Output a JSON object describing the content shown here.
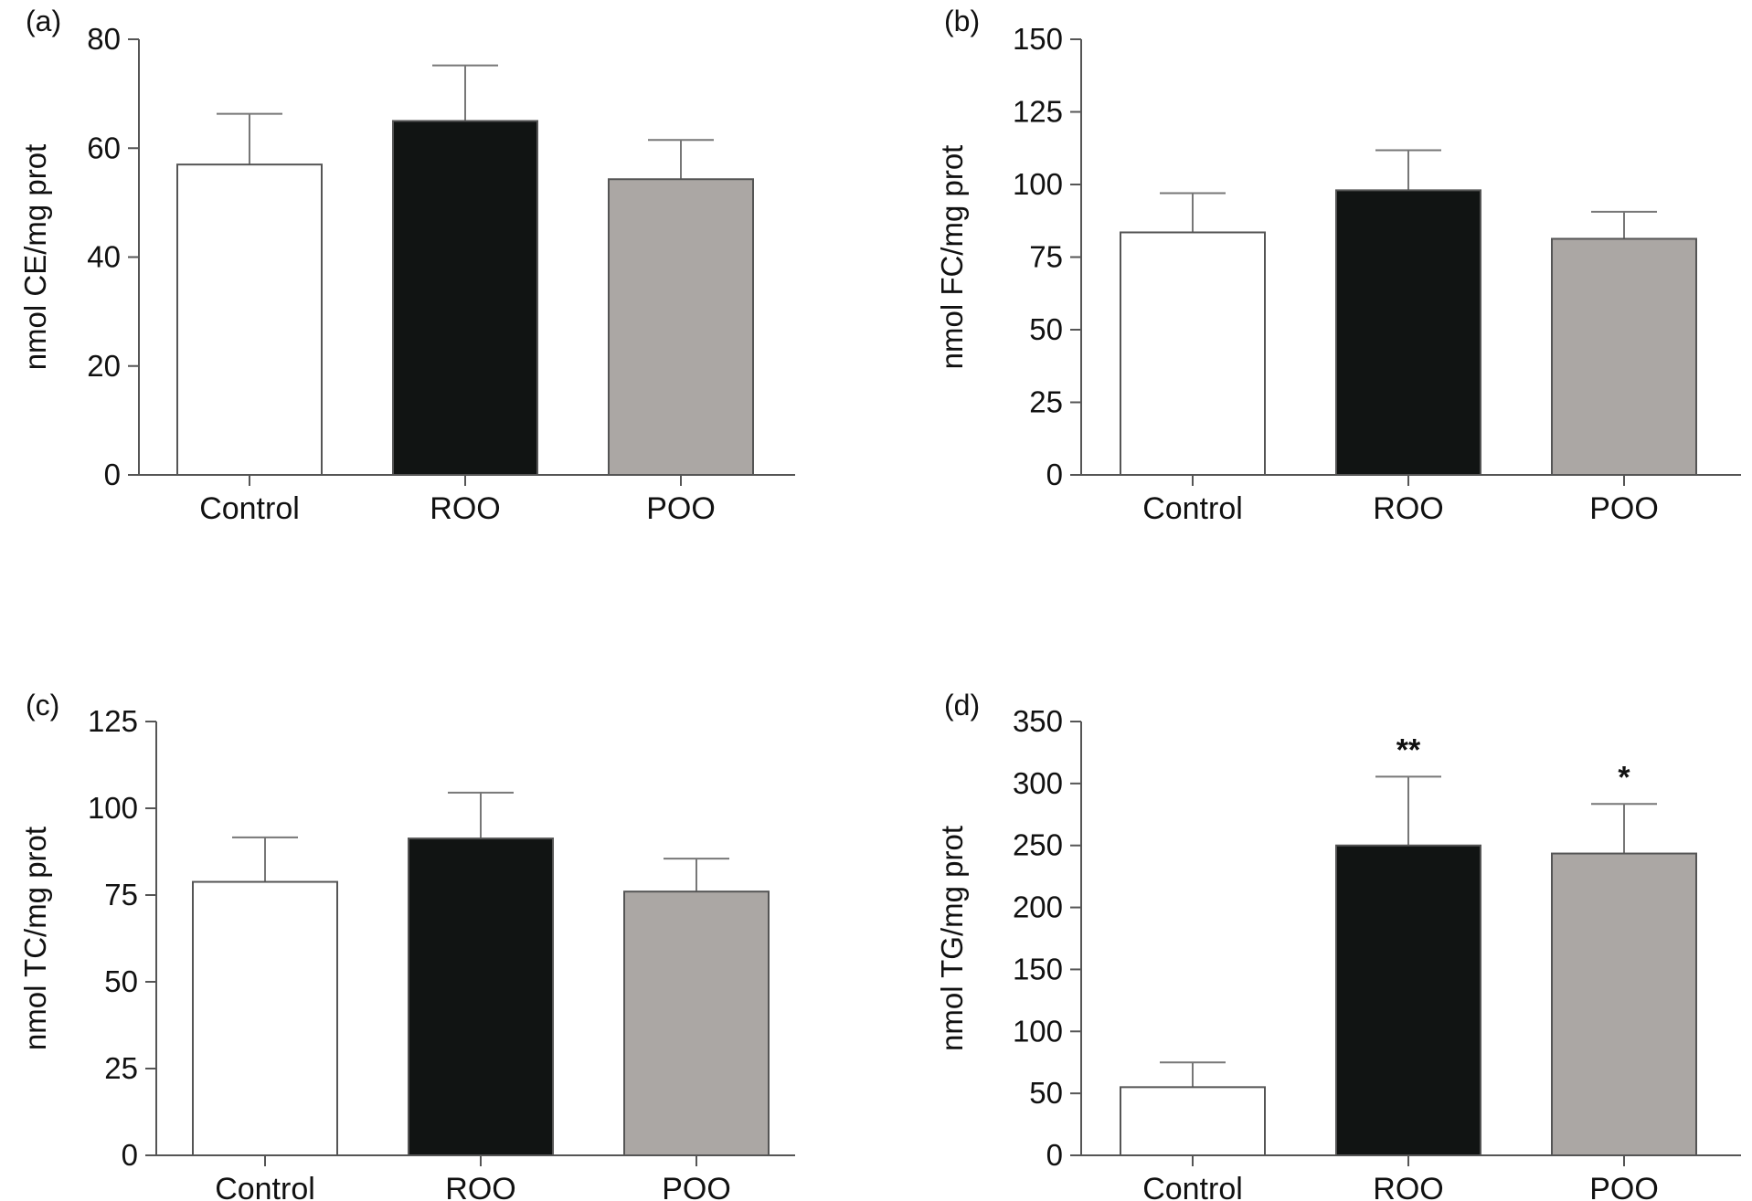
{
  "chart_data": [
    {
      "panel": "(a)",
      "type": "bar",
      "categories": [
        "Control",
        "ROO",
        "POO"
      ],
      "values": [
        57,
        65,
        54.3
      ],
      "errors": [
        9.3,
        10.2,
        7.2
      ],
      "colors": [
        "#ffffff",
        "#111413",
        "#aba7a4"
      ],
      "ylabel": "nmol CE/mg prot",
      "ylim": [
        0,
        80
      ],
      "yticks": [
        "0",
        "20",
        "40",
        "60",
        "80"
      ],
      "annotations": [
        "",
        "",
        ""
      ]
    },
    {
      "panel": "(b)",
      "type": "bar",
      "categories": [
        "Control",
        "ROO",
        "POO"
      ],
      "values": [
        83.5,
        98,
        81.3
      ],
      "errors": [
        13.5,
        13.8,
        9.3
      ],
      "colors": [
        "#ffffff",
        "#111413",
        "#aba7a4"
      ],
      "ylabel": "nmol FC/mg prot",
      "ylim": [
        0,
        150
      ],
      "yticks": [
        "0",
        "25",
        "50",
        "75",
        "100",
        "125",
        "150"
      ],
      "annotations": [
        "",
        "",
        ""
      ]
    },
    {
      "panel": "(c)",
      "type": "bar",
      "categories": [
        "Control",
        "ROO",
        "POO"
      ],
      "values": [
        78.8,
        91.3,
        76
      ],
      "errors": [
        12.8,
        13.2,
        9.5
      ],
      "colors": [
        "#ffffff",
        "#111413",
        "#aba7a4"
      ],
      "ylabel": "nmol TC/mg prot",
      "ylim": [
        0,
        125
      ],
      "yticks": [
        "0",
        "25",
        "50",
        "75",
        "100",
        "125"
      ],
      "annotations": [
        "",
        "",
        ""
      ]
    },
    {
      "panel": "(d)",
      "type": "bar",
      "categories": [
        "Control",
        "ROO",
        "POO"
      ],
      "values": [
        55,
        250,
        243.5
      ],
      "errors": [
        20,
        55.5,
        40
      ],
      "colors": [
        "#ffffff",
        "#111413",
        "#aba7a4"
      ],
      "ylabel": "nmol TG/mg prot",
      "ylim": [
        0,
        350
      ],
      "yticks": [
        "0",
        "50",
        "100",
        "150",
        "200",
        "250",
        "300",
        "350"
      ],
      "annotations": [
        "",
        "**",
        "*"
      ]
    }
  ]
}
